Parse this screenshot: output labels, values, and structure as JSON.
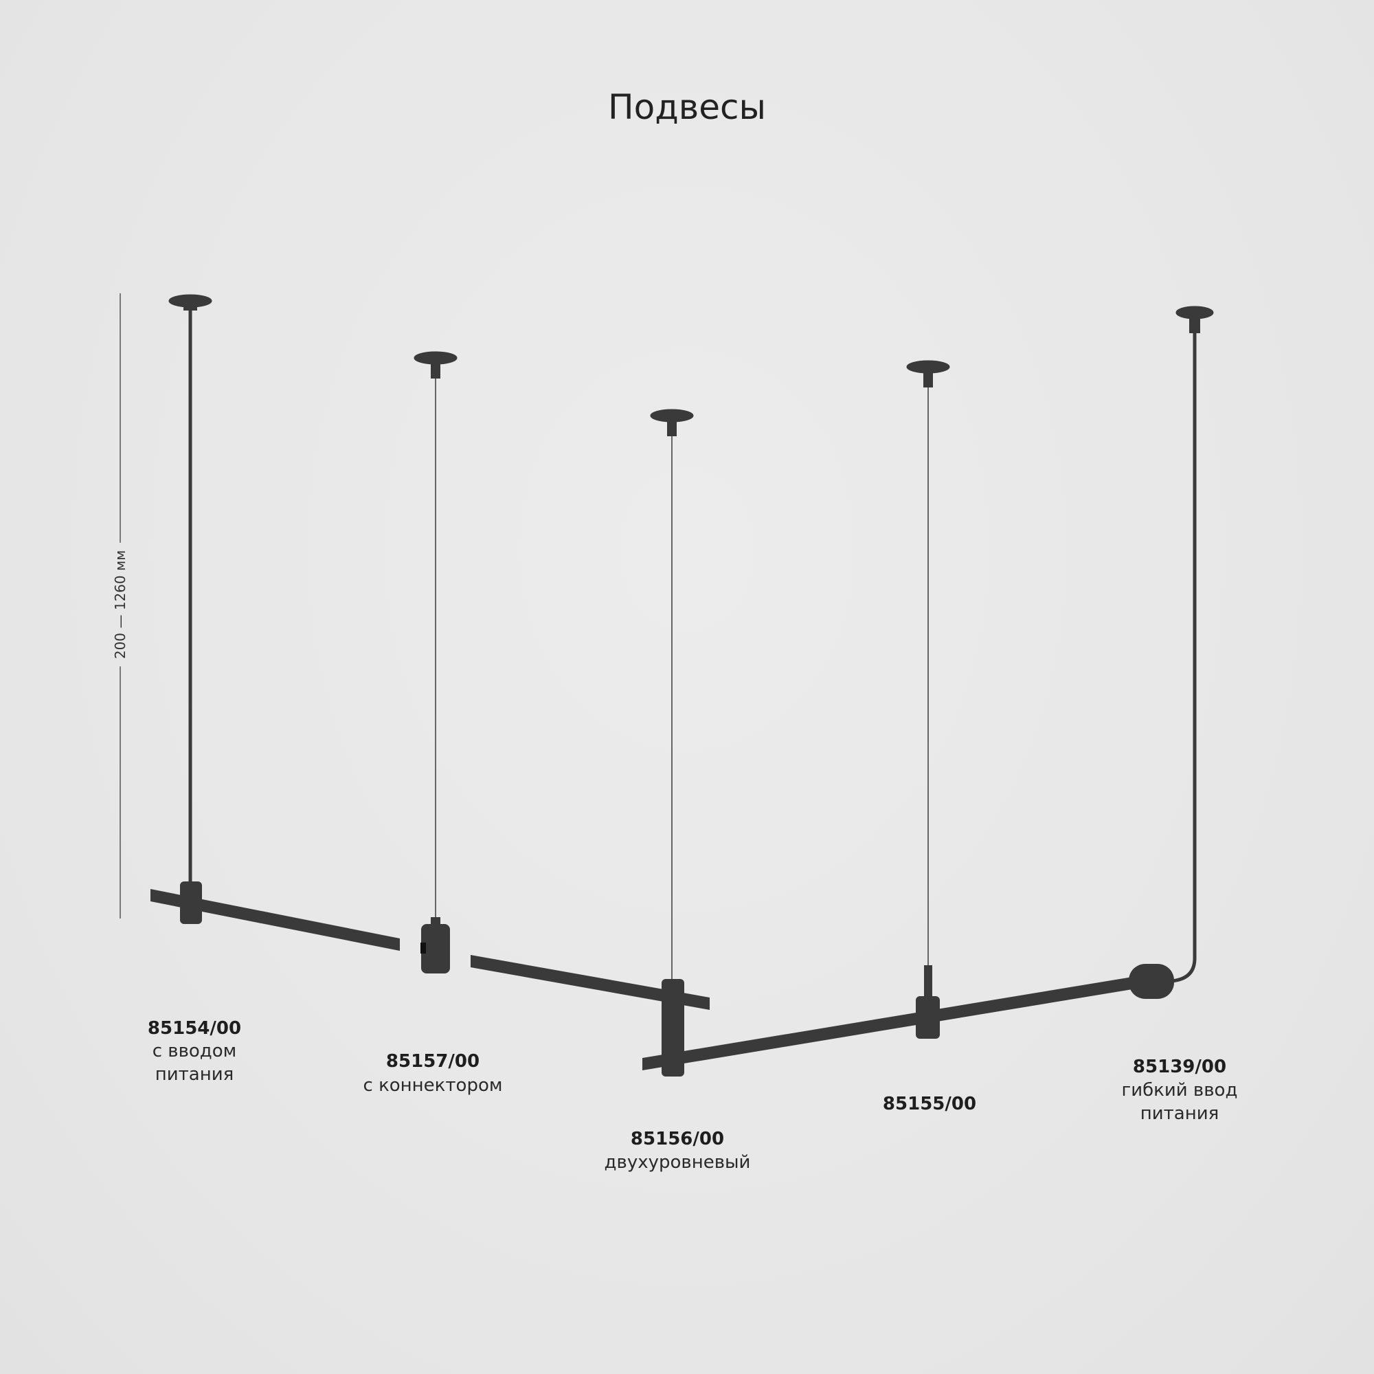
{
  "title": "Подвесы",
  "dimension": "200 — 1260 мм",
  "colors": {
    "background": "#e8e8e8",
    "product": "#3a3a3a"
  },
  "products": [
    {
      "code": "85154/00",
      "desc": [
        "с вводом",
        "питания"
      ]
    },
    {
      "code": "85157/00",
      "desc": [
        "с коннектором"
      ]
    },
    {
      "code": "85156/00",
      "desc": [
        "двухуровневый"
      ]
    },
    {
      "code": "85155/00",
      "desc": []
    },
    {
      "code": "85139/00",
      "desc": [
        "гибкий ввод",
        "питания"
      ]
    }
  ]
}
